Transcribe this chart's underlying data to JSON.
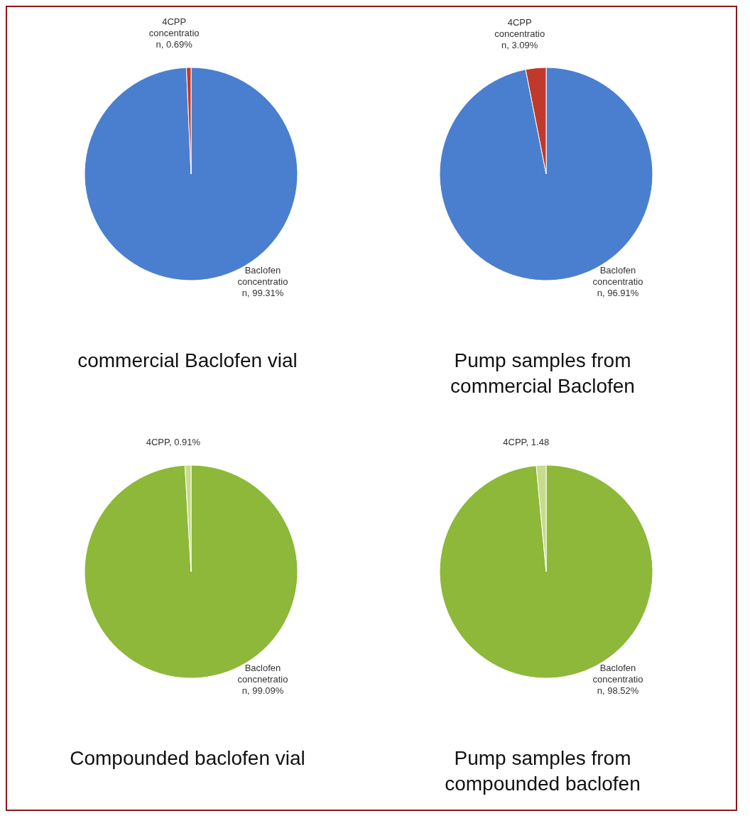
{
  "chart_data": [
    {
      "type": "pie",
      "title": "commercial Baclofen vial",
      "categories": [
        "Baclofen concentration",
        "4CPP concentration"
      ],
      "values": [
        99.31,
        0.69
      ],
      "colors": [
        "#4a7fcf",
        "#c0392b"
      ],
      "value_labels": [
        "99.31%",
        "0.69%"
      ]
    },
    {
      "type": "pie",
      "title": "Pump samples from commercial Baclofen",
      "categories": [
        "Baclofen concentration",
        "4CPP concentration"
      ],
      "values": [
        96.91,
        3.09
      ],
      "colors": [
        "#4a7fcf",
        "#c0392b"
      ],
      "value_labels": [
        "96.91%",
        "3.09%"
      ]
    },
    {
      "type": "pie",
      "title": "Compounded baclofen vial",
      "categories": [
        "Baclofen concnetration",
        "4CPP"
      ],
      "values": [
        99.09,
        0.91
      ],
      "colors": [
        "#8db83a",
        "#c6dc8a"
      ],
      "value_labels": [
        "99.09%",
        "0.91%"
      ]
    },
    {
      "type": "pie",
      "title": "Pump samples from compounded baclofen",
      "categories": [
        "Baclofen concentration",
        "4CPP"
      ],
      "values": [
        98.52,
        1.48
      ],
      "colors": [
        "#8db83a",
        "#c6dc8a"
      ],
      "value_labels": [
        "98.52%",
        "1.48"
      ]
    }
  ]
}
